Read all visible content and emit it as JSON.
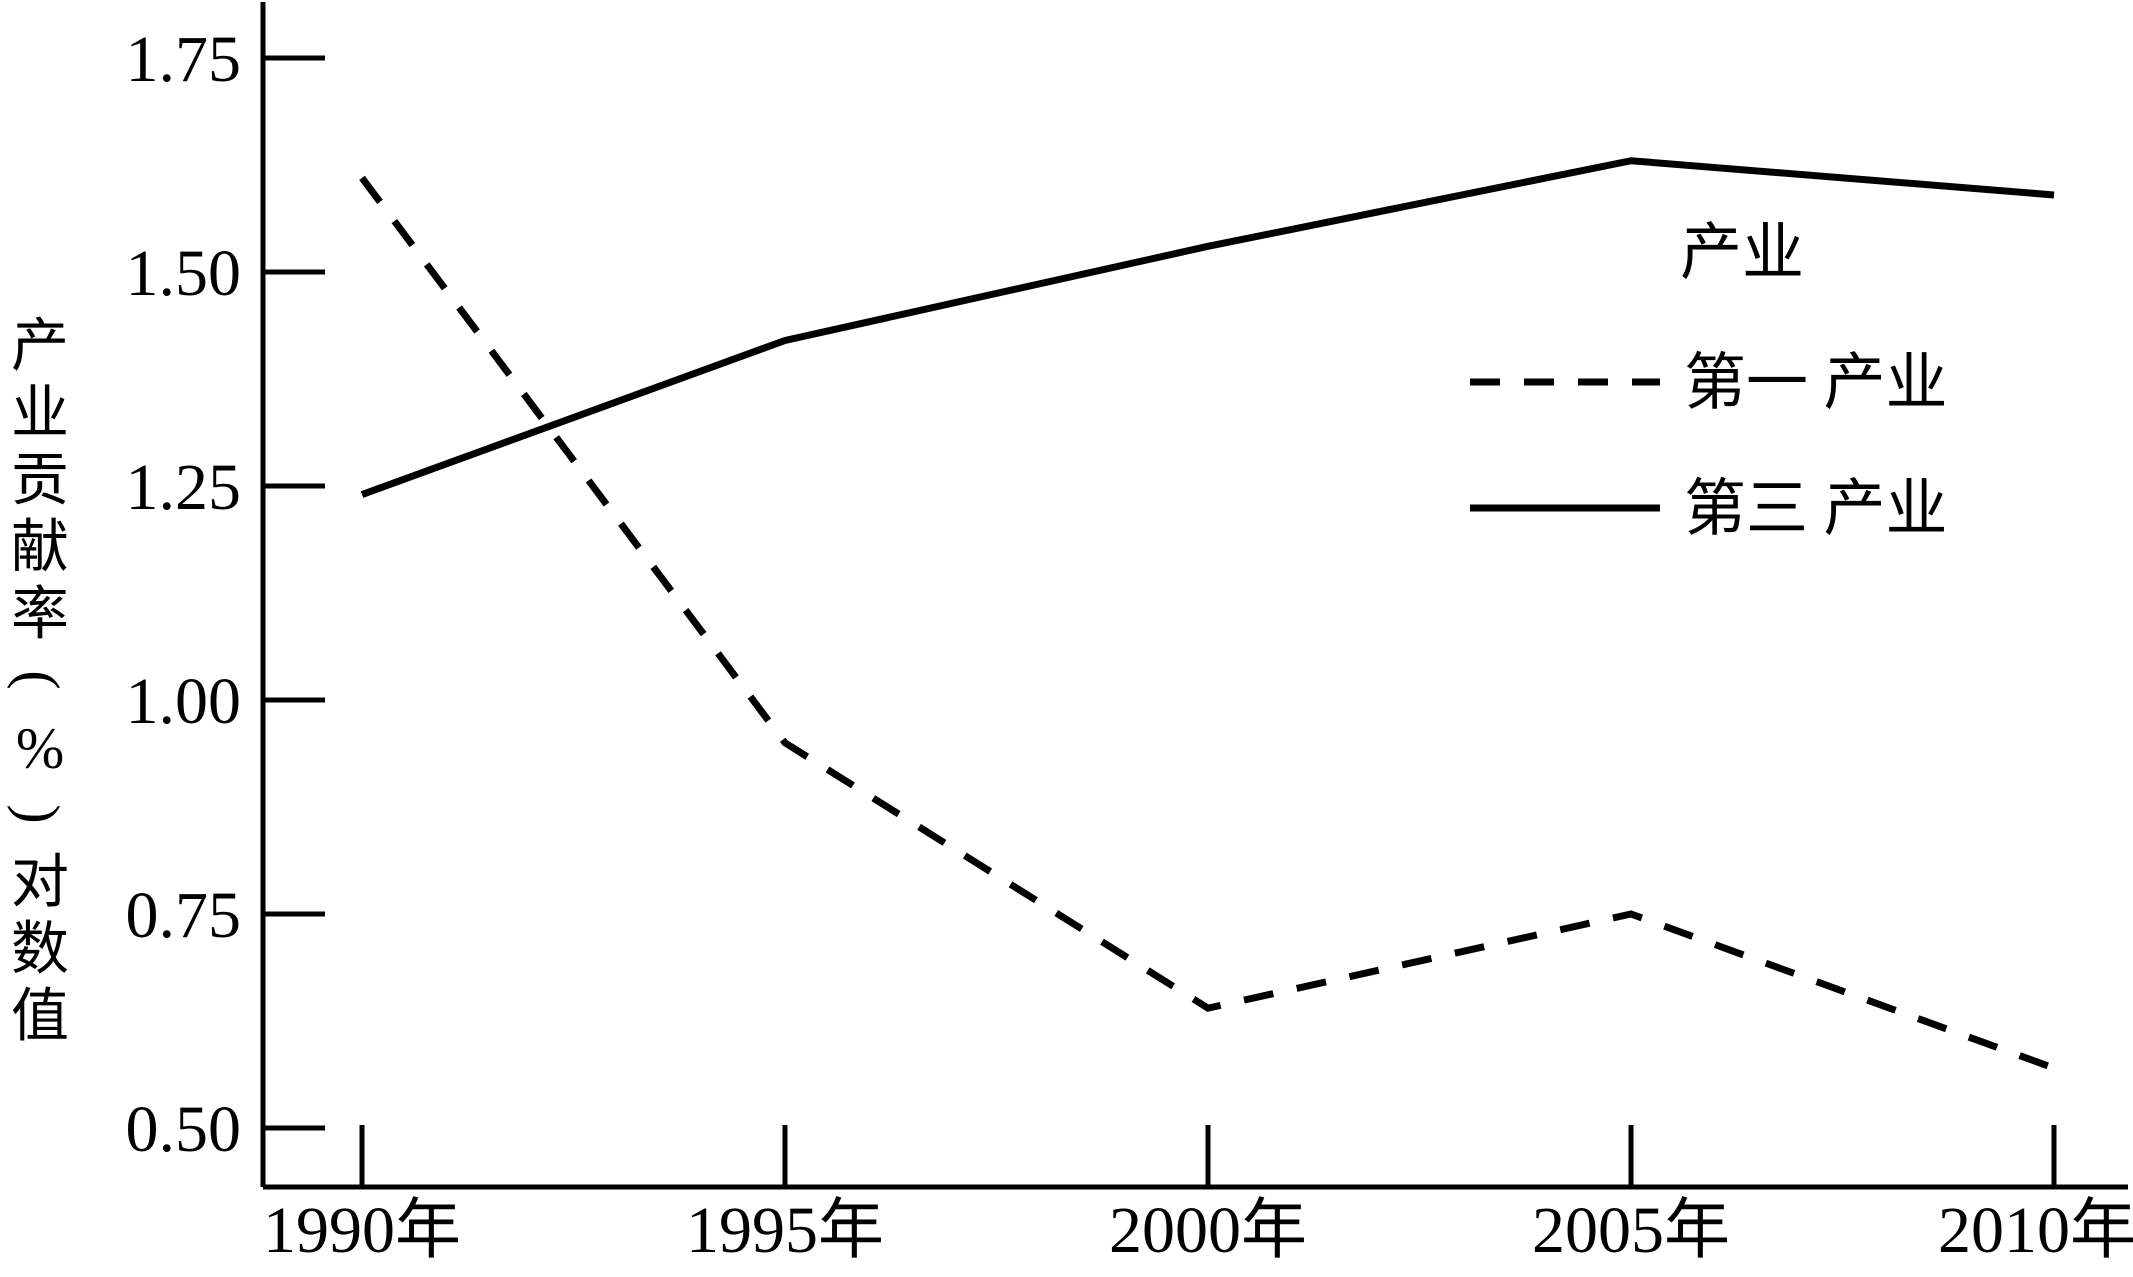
{
  "chart_data": {
    "type": "line",
    "title": "",
    "xlabel": "",
    "ylabel": "产业贡献率(%)对数值",
    "categories": [
      "1990年",
      "1995年",
      "2000年",
      "2005年",
      "2010年"
    ],
    "y_ticks": [
      1.75,
      1.5,
      1.25,
      1.0,
      0.75,
      0.5
    ],
    "ylim": [
      0.43,
      1.82
    ],
    "grid": false,
    "legend": {
      "title": "产业",
      "position": "upper-right",
      "entries": [
        {
          "label": "第一 产业",
          "line_style": "dashed"
        },
        {
          "label": "第三 产业",
          "line_style": "solid"
        }
      ]
    },
    "series": [
      {
        "name": "第一 产业",
        "style": "dashed",
        "color": "#000000",
        "values": [
          1.61,
          0.95,
          0.64,
          0.75,
          0.57
        ]
      },
      {
        "name": "第三 产业",
        "style": "solid",
        "color": "#000000",
        "values": [
          1.24,
          1.42,
          1.53,
          1.63,
          1.59
        ]
      }
    ]
  },
  "colors": {
    "foreground": "#000000",
    "background": "#ffffff"
  }
}
